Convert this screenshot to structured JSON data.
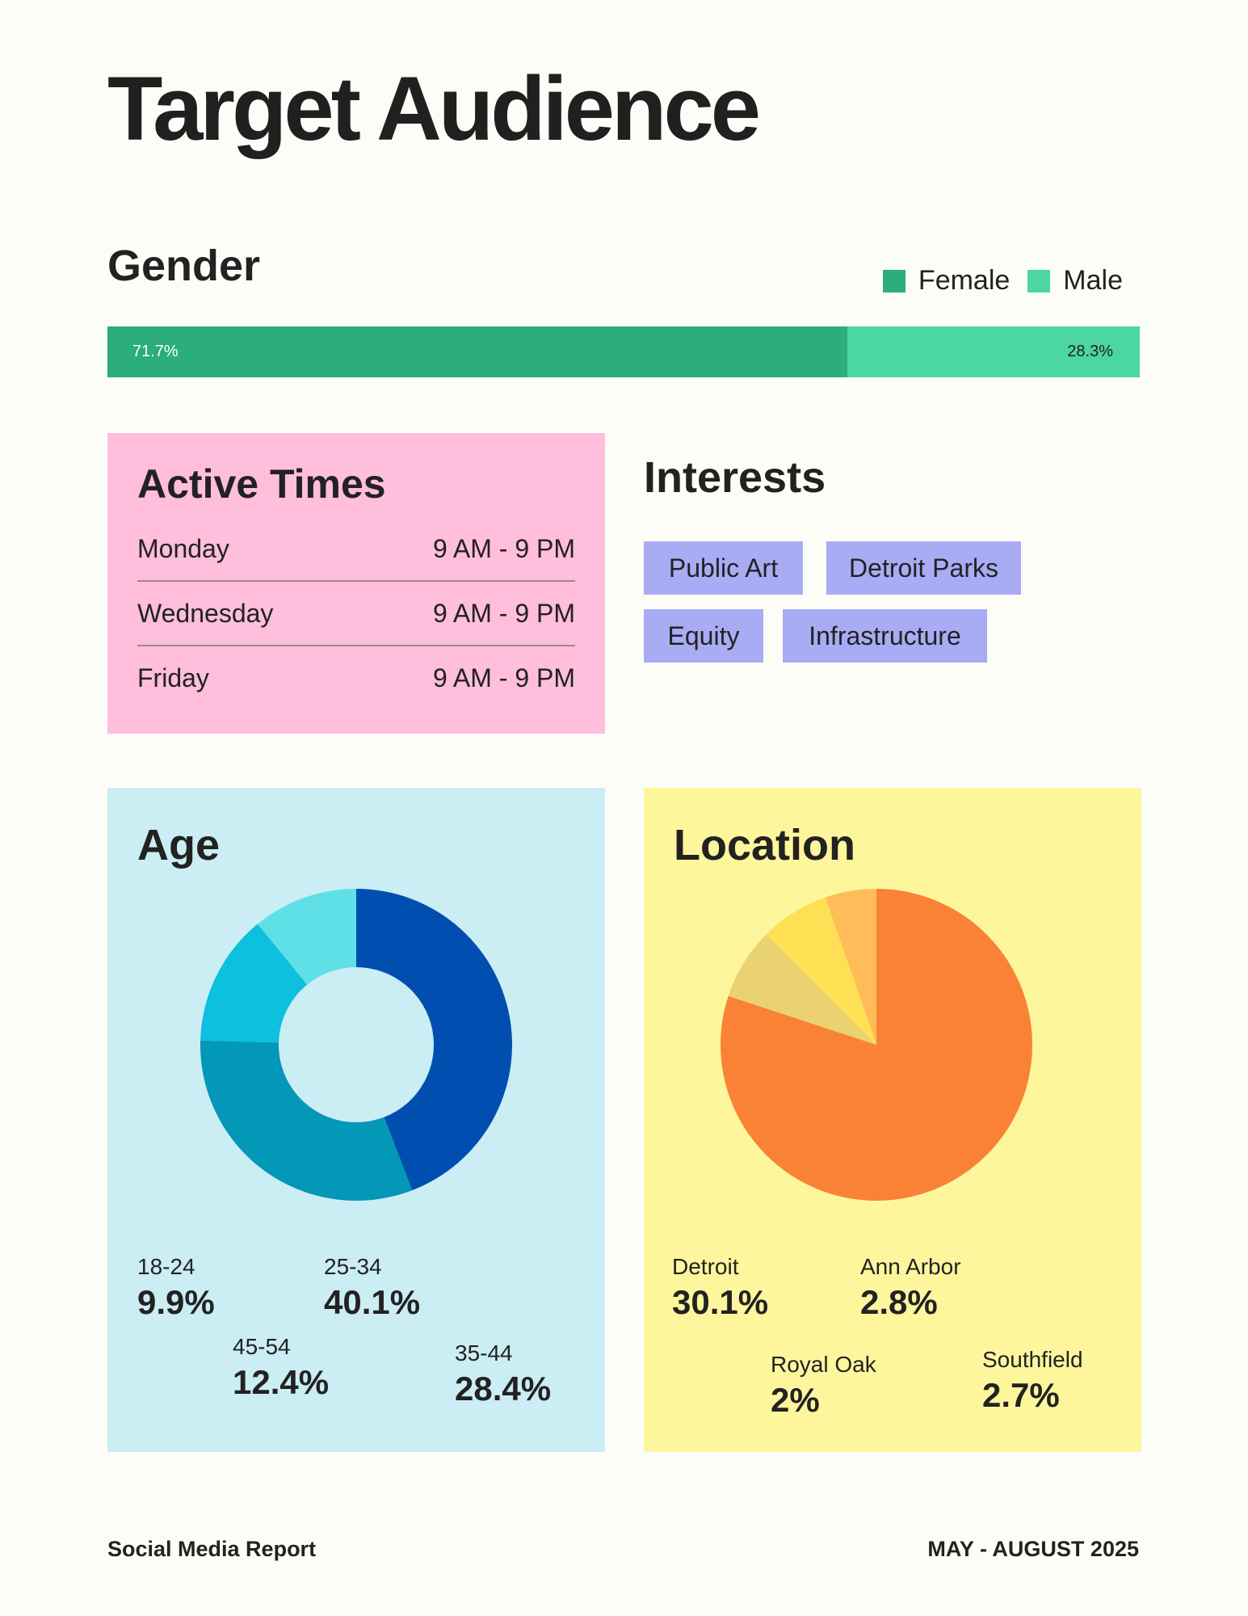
{
  "title": "Target Audience",
  "gender": {
    "heading": "Gender",
    "legend": [
      {
        "label": "Female",
        "color": "#2bad7e"
      },
      {
        "label": "Male",
        "color": "#4bd6a2"
      }
    ],
    "female_percent": 71.7,
    "male_percent": 28.3,
    "female_label": "71.7%",
    "male_label": "28.3%"
  },
  "active_times": {
    "heading": "Active Times",
    "rows": [
      {
        "day": "Monday",
        "time": "9 AM - 9 PM"
      },
      {
        "day": "Wednesday",
        "time": "9 AM - 9 PM"
      },
      {
        "day": "Friday",
        "time": "9 AM - 9 PM"
      }
    ]
  },
  "interests": {
    "heading": "Interests",
    "tags": [
      "Public Art",
      "Detroit Parks",
      "Equity",
      "Infrastructure"
    ]
  },
  "age": {
    "heading": "Age",
    "labels": [
      {
        "range": "18-24",
        "value": "9.9%"
      },
      {
        "range": "25-34",
        "value": "40.1%"
      },
      {
        "range": "45-54",
        "value": "12.4%"
      },
      {
        "range": "35-44",
        "value": "28.4%"
      }
    ]
  },
  "location": {
    "heading": "Location",
    "labels": [
      {
        "name": "Detroit",
        "value": "30.1%"
      },
      {
        "name": "Ann Arbor",
        "value": "2.8%"
      },
      {
        "name": "Royal Oak",
        "value": "2%"
      },
      {
        "name": "Southfield",
        "value": "2.7%"
      }
    ]
  },
  "chart_data": [
    {
      "type": "pie",
      "variant": "donut",
      "categories": [
        "25-34",
        "35-44",
        "45-54",
        "18-24"
      ],
      "values": [
        40.1,
        28.4,
        12.4,
        9.9
      ],
      "colors": [
        "#004fb0",
        "#0397b8",
        "#0cc0de",
        "#5ee0e6"
      ]
    },
    {
      "type": "pie",
      "categories": [
        "Detroit",
        "Ann Arbor",
        "Southfield",
        "Royal Oak"
      ],
      "values": [
        30.1,
        2.8,
        2.7,
        2.0
      ],
      "colors": [
        "#f98237",
        "#e9d26f",
        "#ffe055",
        "#ffbc58"
      ]
    }
  ],
  "footer": {
    "left": "Social Media Report",
    "right": "MAY - AUGUST 2025"
  }
}
